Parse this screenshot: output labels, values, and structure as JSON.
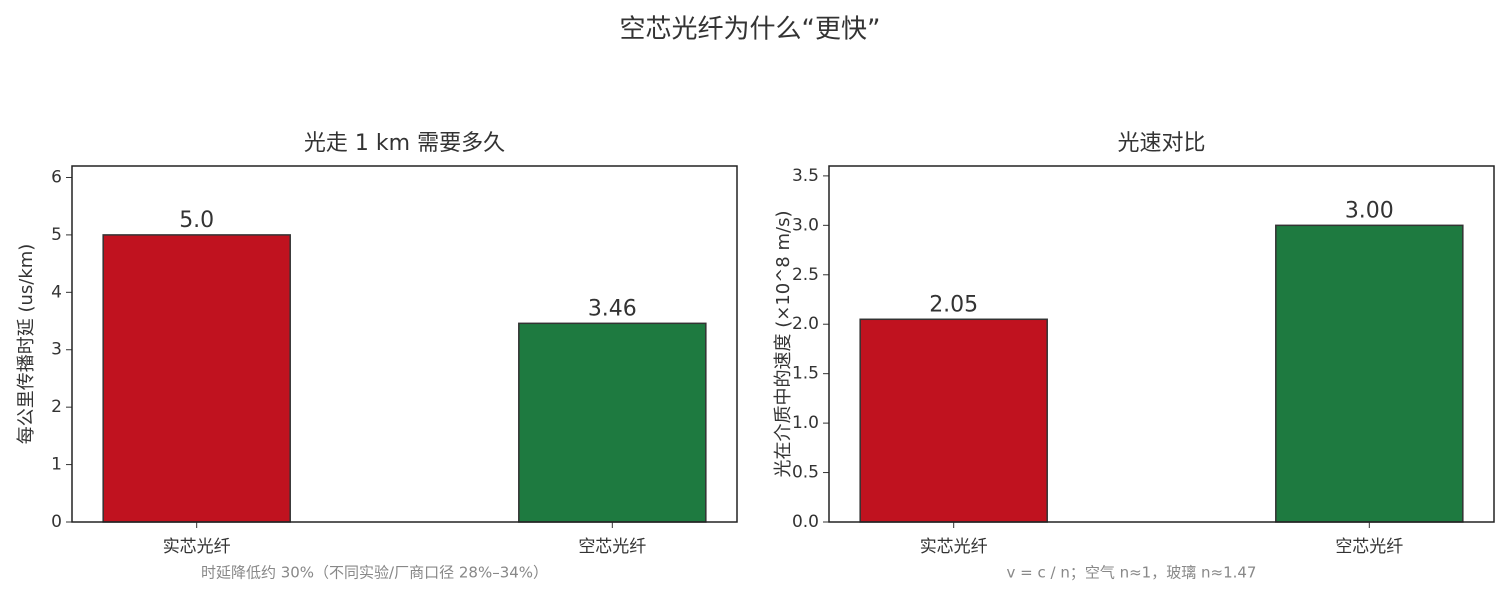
{
  "title": "空芯光纤为什么“更快”",
  "chart_data": [
    {
      "type": "bar",
      "title": "光走 1 km 需要多久",
      "ylabel": "每公里传播时延 (us/km)",
      "categories": [
        "实芯光纤",
        "空芯光纤"
      ],
      "values": [
        5,
        3.46
      ],
      "value_labels": [
        "5.0",
        "3.46"
      ],
      "colors": [
        "#c0121f",
        "#1e7a40"
      ],
      "edgecolor": "#333333",
      "xlim": [
        -0.3,
        1.3
      ],
      "ylim": [
        0,
        6.2
      ],
      "yticks": [
        0,
        1,
        2,
        3,
        4,
        5,
        6
      ],
      "annotation": "时延降低约 30%（不同实验/厂商口径 28%–34%）"
    },
    {
      "type": "bar",
      "title": "光速对比",
      "ylabel": "光在介质中的速度 (×10^8 m/s)",
      "categories": [
        "实芯光纤",
        "空芯光纤"
      ],
      "values": [
        2.05,
        3
      ],
      "value_labels": [
        "2.05",
        "3.00"
      ],
      "colors": [
        "#c0121f",
        "#1e7a40"
      ],
      "edgecolor": "#333333",
      "xlim": [
        -0.3,
        1.3
      ],
      "ylim": [
        0,
        3.6
      ],
      "yticks": [
        {
          "value": 0,
          "label": "0.0"
        },
        0.5,
        {
          "value": 1,
          "label": "1.0"
        },
        1.5,
        {
          "value": 2,
          "label": "2.0"
        },
        2.5,
        {
          "value": 3,
          "label": "3.0"
        },
        3.5
      ],
      "annotation": "v = c / n；空气 n≈1，玻璃 n≈1.47"
    }
  ]
}
